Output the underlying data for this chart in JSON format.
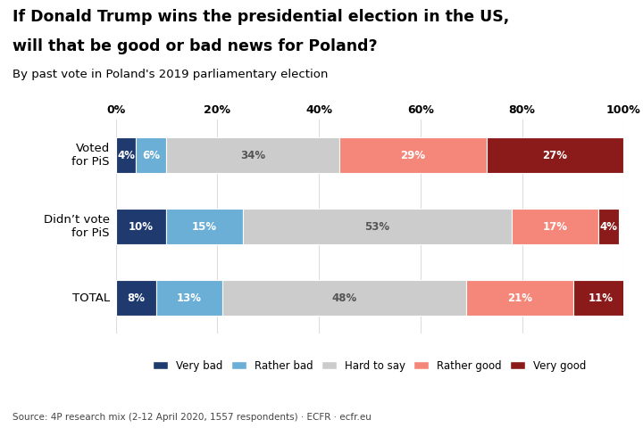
{
  "title_line1": "If Donald Trump wins the presidential election in the US,",
  "title_line2": "will that be good or bad news for Poland?",
  "subtitle": "By past vote in Poland's 2019 parliamentary election",
  "categories": [
    "Voted\nfor PiS",
    "Didn’t vote\nfor PiS",
    "TOTAL"
  ],
  "segments": {
    "Very bad": [
      4,
      10,
      8
    ],
    "Rather bad": [
      6,
      15,
      13
    ],
    "Hard to say": [
      34,
      53,
      48
    ],
    "Rather good": [
      29,
      17,
      21
    ],
    "Very good": [
      27,
      4,
      11
    ]
  },
  "colors": {
    "Very bad": "#1F3A6E",
    "Rather bad": "#6BAED6",
    "Hard to say": "#CCCCCC",
    "Rather good": "#F4877A",
    "Very good": "#8B1A1A"
  },
  "text_colors": {
    "Very bad": "white",
    "Rather bad": "white",
    "Hard to say": "#555555",
    "Rather good": "white",
    "Very good": "white"
  },
  "source": "Source: 4P research mix (2-12 April 2020, 1557 respondents) · ECFR · ecfr.eu",
  "bar_height": 0.5,
  "xlim": [
    0,
    100
  ]
}
